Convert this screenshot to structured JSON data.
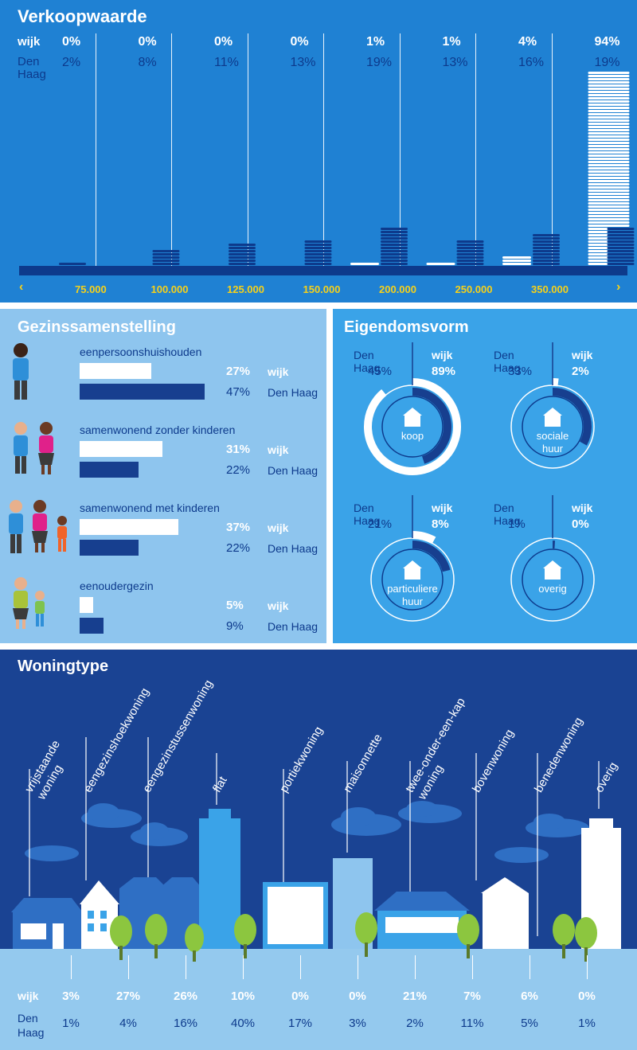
{
  "verkoopwaarde": {
    "title": "Verkoopwaarde",
    "label_wijk": "wijk",
    "label_den_haag_1": "Den",
    "label_den_haag_2": "Haag",
    "wijk_values": [
      "0%",
      "0%",
      "0%",
      "0%",
      "1%",
      "1%",
      "4%",
      "94%"
    ],
    "denhaag_values": [
      "2%",
      "8%",
      "11%",
      "13%",
      "19%",
      "13%",
      "16%",
      "19%"
    ],
    "price_ticks": [
      "75.000",
      "100.000",
      "125.000",
      "150.000",
      "200.000",
      "250.000",
      "350.000"
    ],
    "arrow_left": "‹",
    "arrow_right": "›",
    "chart_data": {
      "type": "bar",
      "series": [
        {
          "name": "wijk",
          "values": [
            0,
            0,
            0,
            0,
            1,
            1,
            4,
            94
          ]
        },
        {
          "name": "Den Haag",
          "values": [
            2,
            8,
            11,
            13,
            19,
            13,
            16,
            19
          ]
        }
      ]
    }
  },
  "gezinssamenstelling": {
    "title": "Gezinssamenstelling",
    "items": [
      {
        "label": "eenpersoonshuishouden",
        "wijk": "27%",
        "denhaag": "47%",
        "wijk_value": 27,
        "denhaag_value": 47
      },
      {
        "label": "samenwonend zonder kinderen",
        "wijk": "31%",
        "denhaag": "22%",
        "wijk_value": 31,
        "denhaag_value": 22
      },
      {
        "label": "samenwonend met kinderen",
        "wijk": "37%",
        "denhaag": "22%",
        "wijk_value": 37,
        "denhaag_value": 22
      },
      {
        "label": "eenoudergezin",
        "wijk": "5%",
        "denhaag": "9%",
        "wijk_value": 5,
        "denhaag_value": 9
      }
    ],
    "wijk_label": "wijk",
    "denhaag_label": "Den Haag"
  },
  "eigendomsvorm": {
    "title": "Eigendomsvorm",
    "den_haag_label": "Den Haag",
    "wijk_label": "wijk",
    "items": [
      {
        "label_line1": "koop",
        "label_line2": "",
        "denhaag": "45%",
        "wijk": "89%",
        "denhaag_value": 45,
        "wijk_value": 89
      },
      {
        "label_line1": "sociale",
        "label_line2": "huur",
        "denhaag": "33%",
        "wijk": "2%",
        "denhaag_value": 33,
        "wijk_value": 2
      },
      {
        "label_line1": "particuliere",
        "label_line2": "huur",
        "denhaag": "21%",
        "wijk": "8%",
        "denhaag_value": 21,
        "wijk_value": 8
      },
      {
        "label_line1": "overig",
        "label_line2": "",
        "denhaag": "1%",
        "wijk": "0%",
        "denhaag_value": 1,
        "wijk_value": 0
      }
    ]
  },
  "woningtype": {
    "title": "Woningtype",
    "label_wijk": "wijk",
    "label_den_haag_1": "Den",
    "label_den_haag_2": "Haag",
    "types": [
      {
        "line1": "vrijstaande",
        "line2": "woning",
        "wijk": "3%",
        "denhaag": "1%"
      },
      {
        "line1": "eengezinshoekwoning",
        "line2": "",
        "wijk": "27%",
        "denhaag": "4%"
      },
      {
        "line1": "eengezinstussenwoning",
        "line2": "",
        "wijk": "26%",
        "denhaag": "16%"
      },
      {
        "line1": "flat",
        "line2": "",
        "wijk": "10%",
        "denhaag": "40%"
      },
      {
        "line1": "portiekwoning",
        "line2": "",
        "wijk": "0%",
        "denhaag": "17%"
      },
      {
        "line1": "maisonnette",
        "line2": "",
        "wijk": "0%",
        "denhaag": "3%"
      },
      {
        "line1": "twee-onder-een-kap",
        "line2": "woning",
        "wijk": "21%",
        "denhaag": "2%"
      },
      {
        "line1": "bovenwoning",
        "line2": "",
        "wijk": "7%",
        "denhaag": "11%"
      },
      {
        "line1": "benedenwoning",
        "line2": "",
        "wijk": "6%",
        "denhaag": "5%"
      },
      {
        "line1": "overig",
        "line2": "",
        "wijk": "0%",
        "denhaag": "1%"
      }
    ]
  },
  "colors": {
    "dark_blue": "#173f8f",
    "mid_blue": "#1f81d3",
    "light_blue": "#8ec5ee",
    "accent_yellow": "#f7d118",
    "tree_green": "#8cc63f"
  }
}
